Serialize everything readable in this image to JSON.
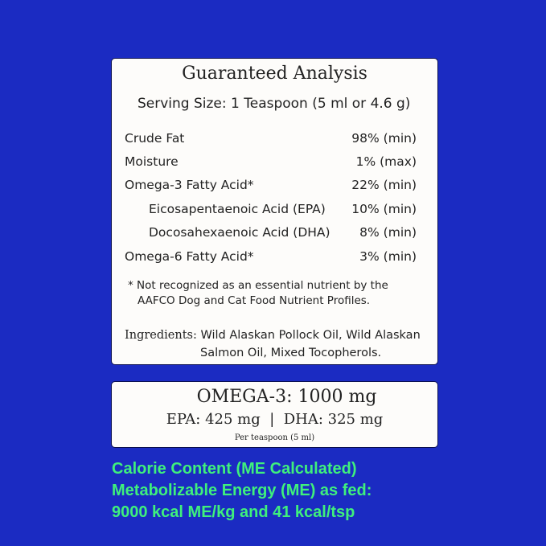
{
  "analysis": {
    "title": "Guaranteed Analysis",
    "serving": "Serving Size: 1 Teaspoon (5 ml or 4.6 g)",
    "rows": [
      {
        "label": "Crude Fat",
        "value": "98% (min)"
      },
      {
        "label": "Moisture",
        "value": "1% (max)"
      },
      {
        "label": "Omega-3 Fatty Acid*",
        "value": "22% (min)"
      },
      {
        "label": "Eicosapentaenoic Acid (EPA)",
        "value": "10% (min)"
      },
      {
        "label": "Docosahexaenoic Acid (DHA)",
        "value": "8% (min)"
      },
      {
        "label": "Omega-6 Fatty Acid*",
        "value": "3% (min)"
      }
    ],
    "note_line1": "* Not recognized as an essential nutrient by the",
    "note_line2": "AAFCO Dog and Cat Food Nutrient Profiles.",
    "ingredients_label": "Ingredients:",
    "ingredients_line1": "Wild Alaskan Pollock Oil, Wild Alaskan",
    "ingredients_line2": "Salmon Oil, Mixed Tocopherols."
  },
  "omega": {
    "main": "OMEGA-3: 1000 mg",
    "sub": "EPA: 425 mg  |  DHA: 325 mg",
    "per": "Per teaspoon (5 ml)"
  },
  "calorie": {
    "line1": "Calorie Content (ME Calculated)",
    "line2": "Metabolizable Energy (ME) as fed:",
    "line3": "9000 kcal ME/kg and 41 kcal/tsp"
  },
  "colors": {
    "background": "#1b2bc2",
    "calorie_text": "#3ff07c"
  }
}
